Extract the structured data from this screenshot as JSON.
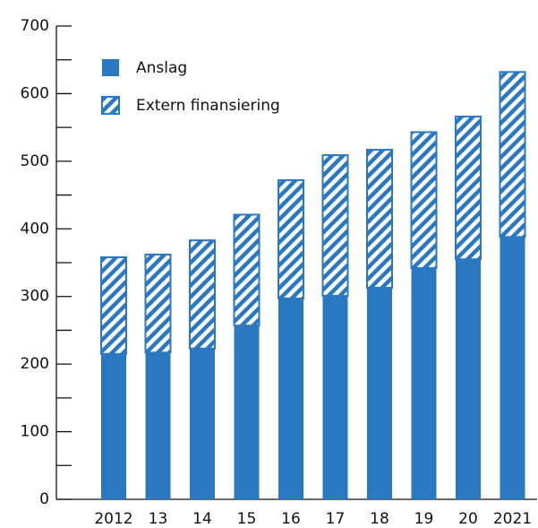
{
  "chart_data": {
    "type": "stacked_bar",
    "categories": [
      "2012",
      "13",
      "14",
      "15",
      "16",
      "17",
      "18",
      "19",
      "20",
      "2021"
    ],
    "series": [
      {
        "name": "Anslag",
        "color": "#2b78c2",
        "pattern": "solid",
        "values": [
          215,
          217,
          223,
          257,
          297,
          301,
          313,
          342,
          355,
          388
        ]
      },
      {
        "name": "Extern finansiering",
        "color": "#2b78c2",
        "pattern": "hatch",
        "values": [
          143,
          145,
          160,
          164,
          175,
          208,
          204,
          201,
          211,
          244
        ]
      }
    ],
    "ylim": [
      0,
      700
    ],
    "yticks": [
      0,
      100,
      200,
      300,
      400,
      500,
      600,
      700
    ],
    "minor_yticks": [
      50,
      150,
      250,
      350,
      450,
      550,
      650
    ],
    "legend": "top-left"
  }
}
